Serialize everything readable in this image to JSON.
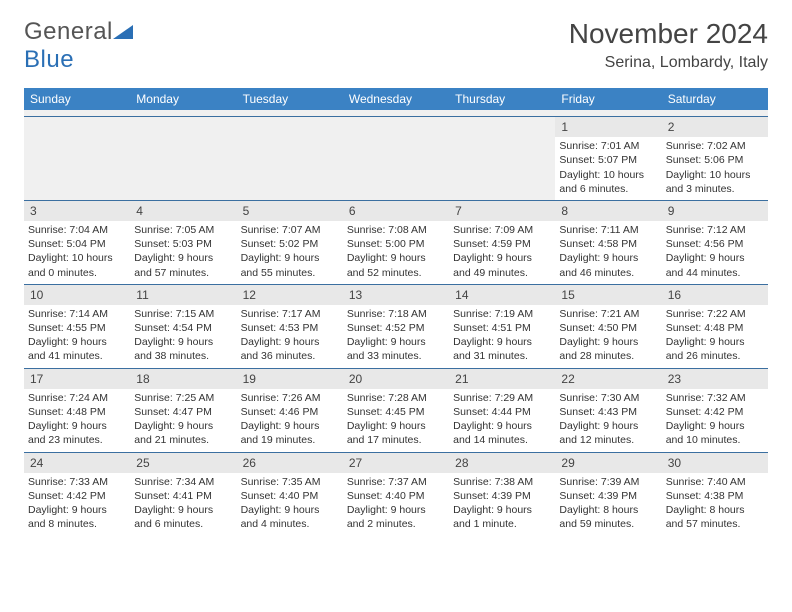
{
  "logo": {
    "general": "General",
    "blue": "Blue"
  },
  "header": {
    "title": "November 2024",
    "location": "Serina, Lombardy, Italy"
  },
  "colors": {
    "header_bg": "#3b82c4",
    "header_text": "#ffffff",
    "daynum_bg": "#e8e8e8",
    "border": "#3b6fa0"
  },
  "weekdays": [
    "Sunday",
    "Monday",
    "Tuesday",
    "Wednesday",
    "Thursday",
    "Friday",
    "Saturday"
  ],
  "weeks": [
    [
      null,
      null,
      null,
      null,
      null,
      {
        "n": "1",
        "sr": "Sunrise: 7:01 AM",
        "ss": "Sunset: 5:07 PM",
        "dl": "Daylight: 10 hours and 6 minutes."
      },
      {
        "n": "2",
        "sr": "Sunrise: 7:02 AM",
        "ss": "Sunset: 5:06 PM",
        "dl": "Daylight: 10 hours and 3 minutes."
      }
    ],
    [
      {
        "n": "3",
        "sr": "Sunrise: 7:04 AM",
        "ss": "Sunset: 5:04 PM",
        "dl": "Daylight: 10 hours and 0 minutes."
      },
      {
        "n": "4",
        "sr": "Sunrise: 7:05 AM",
        "ss": "Sunset: 5:03 PM",
        "dl": "Daylight: 9 hours and 57 minutes."
      },
      {
        "n": "5",
        "sr": "Sunrise: 7:07 AM",
        "ss": "Sunset: 5:02 PM",
        "dl": "Daylight: 9 hours and 55 minutes."
      },
      {
        "n": "6",
        "sr": "Sunrise: 7:08 AM",
        "ss": "Sunset: 5:00 PM",
        "dl": "Daylight: 9 hours and 52 minutes."
      },
      {
        "n": "7",
        "sr": "Sunrise: 7:09 AM",
        "ss": "Sunset: 4:59 PM",
        "dl": "Daylight: 9 hours and 49 minutes."
      },
      {
        "n": "8",
        "sr": "Sunrise: 7:11 AM",
        "ss": "Sunset: 4:58 PM",
        "dl": "Daylight: 9 hours and 46 minutes."
      },
      {
        "n": "9",
        "sr": "Sunrise: 7:12 AM",
        "ss": "Sunset: 4:56 PM",
        "dl": "Daylight: 9 hours and 44 minutes."
      }
    ],
    [
      {
        "n": "10",
        "sr": "Sunrise: 7:14 AM",
        "ss": "Sunset: 4:55 PM",
        "dl": "Daylight: 9 hours and 41 minutes."
      },
      {
        "n": "11",
        "sr": "Sunrise: 7:15 AM",
        "ss": "Sunset: 4:54 PM",
        "dl": "Daylight: 9 hours and 38 minutes."
      },
      {
        "n": "12",
        "sr": "Sunrise: 7:17 AM",
        "ss": "Sunset: 4:53 PM",
        "dl": "Daylight: 9 hours and 36 minutes."
      },
      {
        "n": "13",
        "sr": "Sunrise: 7:18 AM",
        "ss": "Sunset: 4:52 PM",
        "dl": "Daylight: 9 hours and 33 minutes."
      },
      {
        "n": "14",
        "sr": "Sunrise: 7:19 AM",
        "ss": "Sunset: 4:51 PM",
        "dl": "Daylight: 9 hours and 31 minutes."
      },
      {
        "n": "15",
        "sr": "Sunrise: 7:21 AM",
        "ss": "Sunset: 4:50 PM",
        "dl": "Daylight: 9 hours and 28 minutes."
      },
      {
        "n": "16",
        "sr": "Sunrise: 7:22 AM",
        "ss": "Sunset: 4:48 PM",
        "dl": "Daylight: 9 hours and 26 minutes."
      }
    ],
    [
      {
        "n": "17",
        "sr": "Sunrise: 7:24 AM",
        "ss": "Sunset: 4:48 PM",
        "dl": "Daylight: 9 hours and 23 minutes."
      },
      {
        "n": "18",
        "sr": "Sunrise: 7:25 AM",
        "ss": "Sunset: 4:47 PM",
        "dl": "Daylight: 9 hours and 21 minutes."
      },
      {
        "n": "19",
        "sr": "Sunrise: 7:26 AM",
        "ss": "Sunset: 4:46 PM",
        "dl": "Daylight: 9 hours and 19 minutes."
      },
      {
        "n": "20",
        "sr": "Sunrise: 7:28 AM",
        "ss": "Sunset: 4:45 PM",
        "dl": "Daylight: 9 hours and 17 minutes."
      },
      {
        "n": "21",
        "sr": "Sunrise: 7:29 AM",
        "ss": "Sunset: 4:44 PM",
        "dl": "Daylight: 9 hours and 14 minutes."
      },
      {
        "n": "22",
        "sr": "Sunrise: 7:30 AM",
        "ss": "Sunset: 4:43 PM",
        "dl": "Daylight: 9 hours and 12 minutes."
      },
      {
        "n": "23",
        "sr": "Sunrise: 7:32 AM",
        "ss": "Sunset: 4:42 PM",
        "dl": "Daylight: 9 hours and 10 minutes."
      }
    ],
    [
      {
        "n": "24",
        "sr": "Sunrise: 7:33 AM",
        "ss": "Sunset: 4:42 PM",
        "dl": "Daylight: 9 hours and 8 minutes."
      },
      {
        "n": "25",
        "sr": "Sunrise: 7:34 AM",
        "ss": "Sunset: 4:41 PM",
        "dl": "Daylight: 9 hours and 6 minutes."
      },
      {
        "n": "26",
        "sr": "Sunrise: 7:35 AM",
        "ss": "Sunset: 4:40 PM",
        "dl": "Daylight: 9 hours and 4 minutes."
      },
      {
        "n": "27",
        "sr": "Sunrise: 7:37 AM",
        "ss": "Sunset: 4:40 PM",
        "dl": "Daylight: 9 hours and 2 minutes."
      },
      {
        "n": "28",
        "sr": "Sunrise: 7:38 AM",
        "ss": "Sunset: 4:39 PM",
        "dl": "Daylight: 9 hours and 1 minute."
      },
      {
        "n": "29",
        "sr": "Sunrise: 7:39 AM",
        "ss": "Sunset: 4:39 PM",
        "dl": "Daylight: 8 hours and 59 minutes."
      },
      {
        "n": "30",
        "sr": "Sunrise: 7:40 AM",
        "ss": "Sunset: 4:38 PM",
        "dl": "Daylight: 8 hours and 57 minutes."
      }
    ]
  ]
}
